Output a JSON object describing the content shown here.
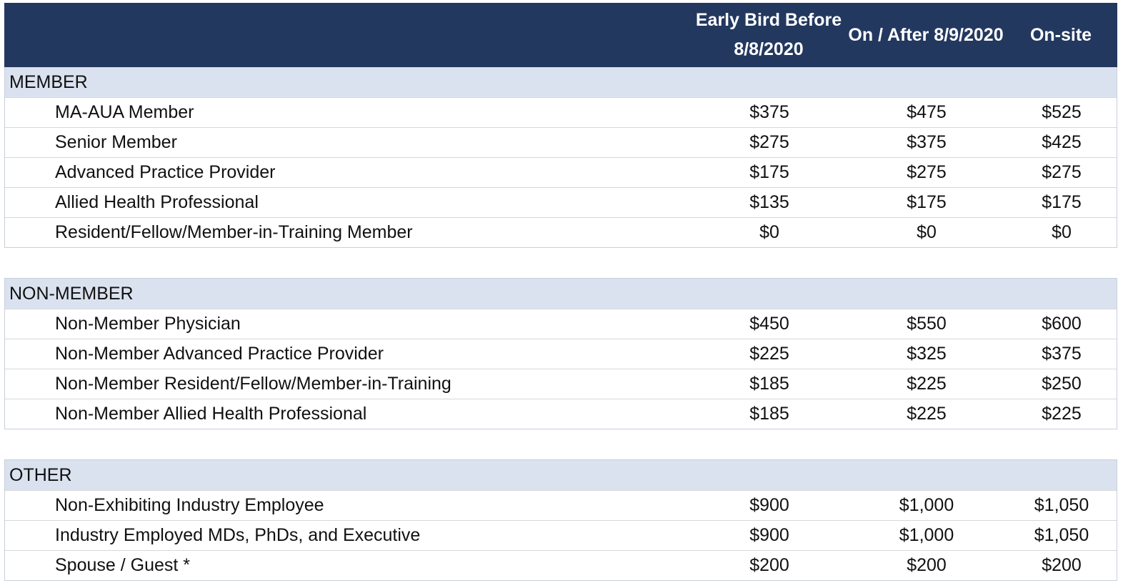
{
  "header": {
    "col1": "",
    "col2": "Early Bird Before 8/8/2020",
    "col3": "On / After 8/9/2020",
    "col4": "On-site"
  },
  "sections": [
    {
      "title": "MEMBER",
      "rows": [
        {
          "label": "MA-AUA Member",
          "early": "$375",
          "after": "$475",
          "onsite": "$525"
        },
        {
          "label": "Senior Member",
          "early": "$275",
          "after": "$375",
          "onsite": "$425"
        },
        {
          "label": "Advanced Practice Provider",
          "early": "$175",
          "after": "$275",
          "onsite": "$275"
        },
        {
          "label": "Allied Health Professional",
          "early": "$135",
          "after": "$175",
          "onsite": "$175"
        },
        {
          "label": "Resident/Fellow/Member-in-Training Member",
          "early": "$0",
          "after": "$0",
          "onsite": "$0"
        }
      ]
    },
    {
      "title": "NON-MEMBER",
      "rows": [
        {
          "label": "Non-Member Physician",
          "early": "$450",
          "after": "$550",
          "onsite": "$600"
        },
        {
          "label": "Non-Member Advanced Practice Provider",
          "early": "$225",
          "after": "$325",
          "onsite": "$375"
        },
        {
          "label": "Non-Member Resident/Fellow/Member-in-Training",
          "early": "$185",
          "after": "$225",
          "onsite": "$250"
        },
        {
          "label": "Non-Member Allied Health Professional",
          "early": "$185",
          "after": "$225",
          "onsite": "$225"
        }
      ]
    },
    {
      "title": "OTHER",
      "rows": [
        {
          "label": "Non-Exhibiting Industry Employee",
          "early": "$900",
          "after": "$1,000",
          "onsite": "$1,050"
        },
        {
          "label": "Industry Employed MDs, PhDs, and Executive",
          "early": "$900",
          "after": "$1,000",
          "onsite": "$1,050"
        },
        {
          "label": "Spouse / Guest *",
          "early": "$200",
          "after": "$200",
          "onsite": "$200"
        }
      ]
    }
  ],
  "colors": {
    "header_bg": "#23385f",
    "section_bg": "#dbe2ef"
  }
}
